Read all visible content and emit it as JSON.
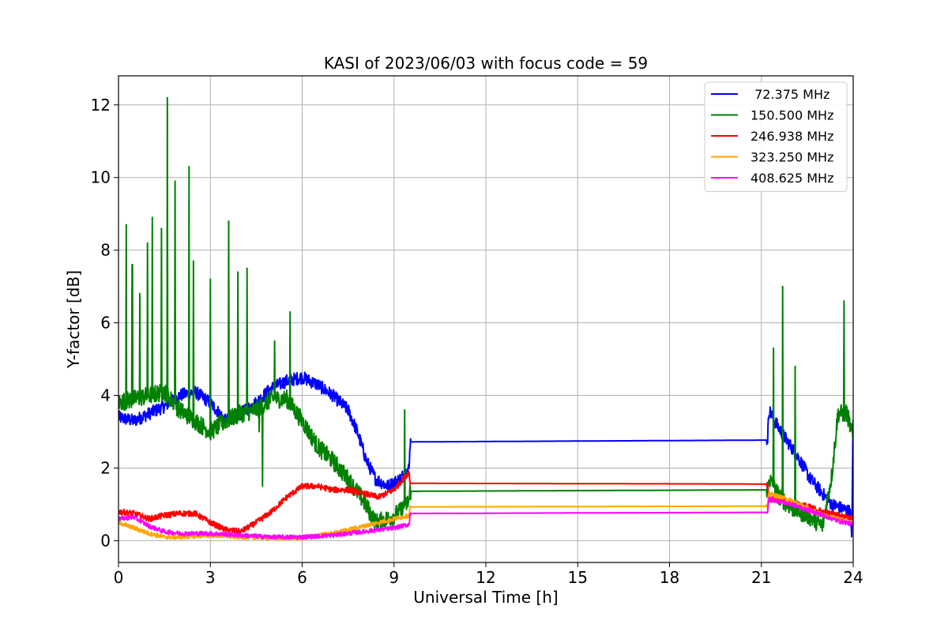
{
  "chart_data": {
    "type": "line",
    "title": "KASI of 2023/06/03 with focus code = 59",
    "xlabel": "Universal Time [h]",
    "ylabel": "Y-factor [dB]",
    "xlim": [
      0,
      24
    ],
    "ylim": [
      -0.6,
      12.8
    ],
    "xticks": [
      0,
      3,
      6,
      9,
      12,
      15,
      18,
      21,
      24
    ],
    "yticks": [
      0,
      2,
      4,
      6,
      8,
      10,
      12
    ],
    "xtick_labels": [
      "0",
      "3",
      "6",
      "9",
      "12",
      "15",
      "18",
      "21",
      "24"
    ],
    "ytick_labels": [
      "0",
      "2",
      "4",
      "6",
      "8",
      "10",
      "12"
    ],
    "grid": true,
    "legend_position": "top-right",
    "series": [
      {
        "name": " 72.375 MHz",
        "color": "#0000ff",
        "points": [
          [
            0,
            3.4
          ],
          [
            0.5,
            3.3
          ],
          [
            1,
            3.5
          ],
          [
            1.5,
            3.7
          ],
          [
            2,
            4.0
          ],
          [
            2.5,
            4.1
          ],
          [
            3,
            3.8
          ],
          [
            3.5,
            3.3
          ],
          [
            4,
            3.5
          ],
          [
            4.5,
            3.8
          ],
          [
            5,
            4.2
          ],
          [
            5.5,
            4.4
          ],
          [
            6,
            4.5
          ],
          [
            6.5,
            4.3
          ],
          [
            7,
            4.0
          ],
          [
            7.5,
            3.6
          ],
          [
            7.8,
            3.0
          ],
          [
            8.1,
            2.2
          ],
          [
            8.4,
            1.7
          ],
          [
            8.8,
            1.5
          ],
          [
            9.2,
            1.7
          ],
          [
            9.5,
            2.0
          ],
          [
            9.52,
            2.72
          ],
          [
            21.2,
            2.77
          ],
          [
            21.25,
            3.6
          ],
          [
            21.5,
            3.2
          ],
          [
            21.8,
            2.8
          ],
          [
            22.2,
            2.3
          ],
          [
            22.6,
            1.7
          ],
          [
            23.0,
            1.3
          ],
          [
            23.3,
            1.0
          ],
          [
            23.6,
            0.9
          ],
          [
            23.9,
            0.8
          ],
          [
            23.95,
            0.0
          ],
          [
            24,
            3.3
          ]
        ],
        "noise": 0.18
      },
      {
        "name": "150.500 MHz",
        "color": "#008000",
        "points": [
          [
            0,
            3.8
          ],
          [
            0.5,
            3.9
          ],
          [
            1,
            4.0
          ],
          [
            1.5,
            4.1
          ],
          [
            2,
            3.6
          ],
          [
            2.5,
            3.3
          ],
          [
            3,
            3.0
          ],
          [
            3.5,
            3.3
          ],
          [
            4,
            3.5
          ],
          [
            4.5,
            3.6
          ],
          [
            5,
            3.9
          ],
          [
            5.5,
            3.9
          ],
          [
            6,
            3.3
          ],
          [
            6.5,
            2.6
          ],
          [
            7,
            2.2
          ],
          [
            7.5,
            1.7
          ],
          [
            8,
            1.1
          ],
          [
            8.4,
            0.5
          ],
          [
            8.8,
            0.6
          ],
          [
            9.2,
            0.8
          ],
          [
            9.5,
            1.1
          ],
          [
            9.52,
            1.36
          ],
          [
            21.2,
            1.4
          ],
          [
            21.25,
            1.7
          ],
          [
            21.6,
            1.2
          ],
          [
            22,
            0.9
          ],
          [
            22.5,
            0.7
          ],
          [
            23,
            0.4
          ],
          [
            23.3,
            1.8
          ],
          [
            23.5,
            3.5
          ],
          [
            23.8,
            3.5
          ],
          [
            24,
            2.8
          ]
        ],
        "noise": 0.25,
        "spikes": [
          [
            0.25,
            8.7
          ],
          [
            0.45,
            7.6
          ],
          [
            0.7,
            6.8
          ],
          [
            0.95,
            8.2
          ],
          [
            1.1,
            8.9
          ],
          [
            1.4,
            8.6
          ],
          [
            1.6,
            12.2
          ],
          [
            1.85,
            9.9
          ],
          [
            2.3,
            10.3
          ],
          [
            2.45,
            7.7
          ],
          [
            3.0,
            7.2
          ],
          [
            3.6,
            8.8
          ],
          [
            3.9,
            7.4
          ],
          [
            4.2,
            7.5
          ],
          [
            4.6,
            3.0
          ],
          [
            4.7,
            1.5
          ],
          [
            5.1,
            5.5
          ],
          [
            5.6,
            6.3
          ],
          [
            9.35,
            3.6
          ],
          [
            21.4,
            5.3
          ],
          [
            21.7,
            7.0
          ],
          [
            22.1,
            4.8
          ],
          [
            23.7,
            6.6
          ]
        ]
      },
      {
        "name": "246.938 MHz",
        "color": "#ff0000",
        "points": [
          [
            0,
            0.8
          ],
          [
            0.5,
            0.75
          ],
          [
            1,
            0.6
          ],
          [
            1.5,
            0.7
          ],
          [
            2,
            0.75
          ],
          [
            2.5,
            0.75
          ],
          [
            3,
            0.5
          ],
          [
            3.5,
            0.3
          ],
          [
            4,
            0.25
          ],
          [
            4.5,
            0.5
          ],
          [
            5,
            0.8
          ],
          [
            5.5,
            1.2
          ],
          [
            6,
            1.5
          ],
          [
            6.5,
            1.5
          ],
          [
            7,
            1.4
          ],
          [
            7.5,
            1.4
          ],
          [
            8,
            1.3
          ],
          [
            8.5,
            1.2
          ],
          [
            9,
            1.4
          ],
          [
            9.5,
            1.9
          ],
          [
            9.52,
            1.58
          ],
          [
            21.2,
            1.56
          ],
          [
            21.25,
            1.15
          ],
          [
            22,
            1.05
          ],
          [
            22.5,
            0.95
          ],
          [
            23,
            0.8
          ],
          [
            23.5,
            0.7
          ],
          [
            24,
            0.6
          ]
        ],
        "noise": 0.08
      },
      {
        "name": "323.250 MHz",
        "color": "#ffa500",
        "points": [
          [
            0,
            0.5
          ],
          [
            1,
            0.2
          ],
          [
            1.5,
            0.1
          ],
          [
            2,
            0.1
          ],
          [
            3,
            0.15
          ],
          [
            4,
            0.1
          ],
          [
            5,
            0.08
          ],
          [
            6,
            0.08
          ],
          [
            7,
            0.2
          ],
          [
            8,
            0.4
          ],
          [
            8.5,
            0.5
          ],
          [
            9,
            0.6
          ],
          [
            9.5,
            0.7
          ],
          [
            9.52,
            0.93
          ],
          [
            21.2,
            0.95
          ],
          [
            21.25,
            1.3
          ],
          [
            22,
            1.1
          ],
          [
            22.5,
            0.9
          ],
          [
            23,
            0.7
          ],
          [
            23.5,
            0.6
          ],
          [
            24,
            0.5
          ]
        ],
        "noise": 0.06
      },
      {
        "name": "408.625 MHz",
        "color": "#ff00ff",
        "points": [
          [
            0,
            0.6
          ],
          [
            0.5,
            0.65
          ],
          [
            1,
            0.4
          ],
          [
            1.5,
            0.25
          ],
          [
            2,
            0.2
          ],
          [
            3,
            0.2
          ],
          [
            4,
            0.15
          ],
          [
            5,
            0.1
          ],
          [
            6,
            0.1
          ],
          [
            7,
            0.15
          ],
          [
            8,
            0.25
          ],
          [
            9,
            0.35
          ],
          [
            9.5,
            0.45
          ],
          [
            9.52,
            0.75
          ],
          [
            21.2,
            0.78
          ],
          [
            21.25,
            1.15
          ],
          [
            22,
            1.0
          ],
          [
            22.5,
            0.85
          ],
          [
            23,
            0.7
          ],
          [
            23.5,
            0.55
          ],
          [
            24,
            0.45
          ]
        ],
        "noise": 0.06
      }
    ]
  }
}
